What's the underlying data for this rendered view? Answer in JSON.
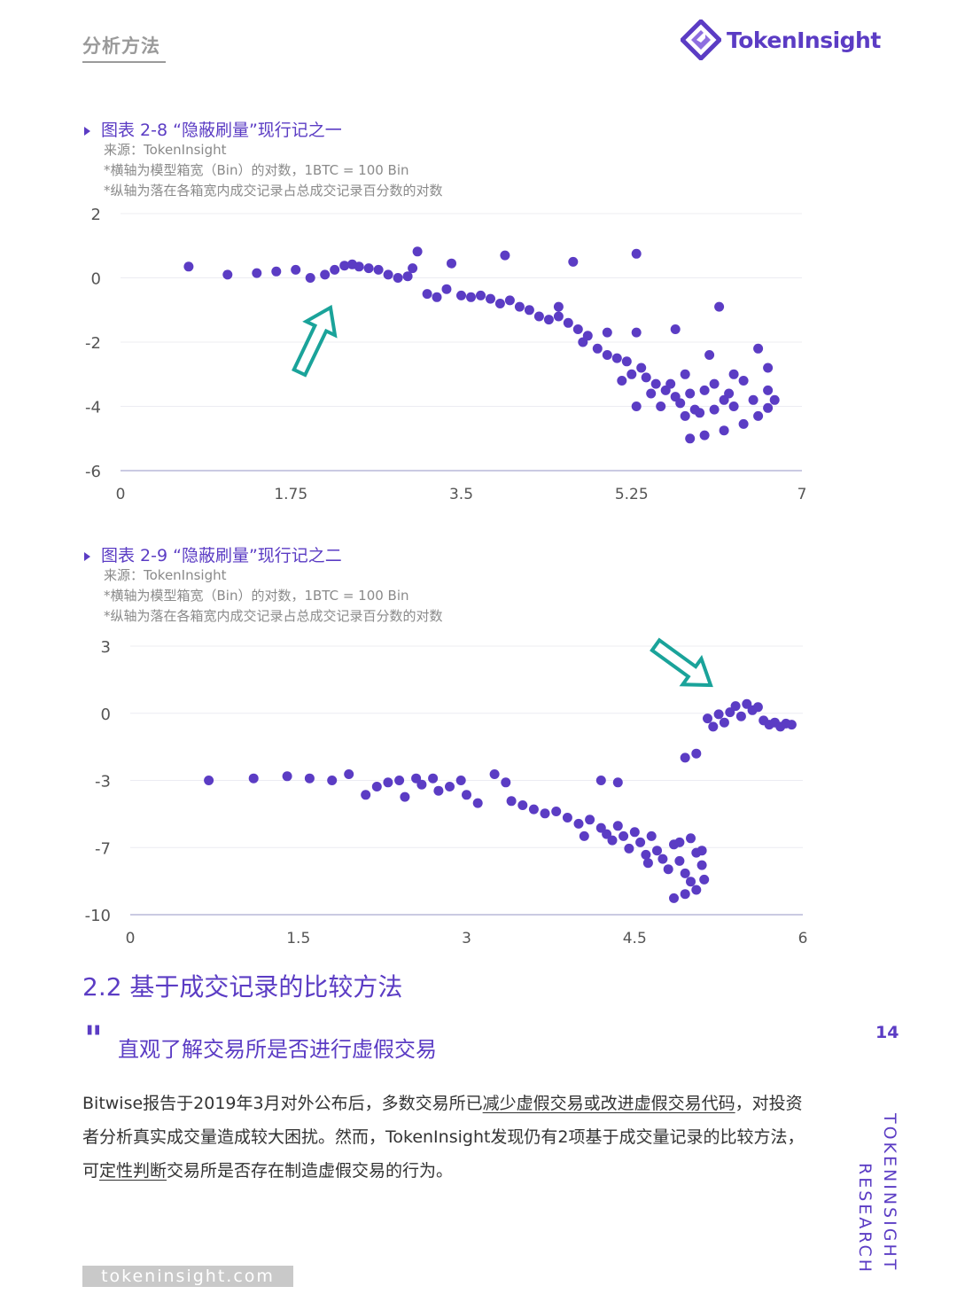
{
  "header": {
    "section_tag": "分析方法",
    "logo_text": "TokenInsight"
  },
  "figures": [
    {
      "title": "图表 2-8 “隐蔽刷量”现行记之一",
      "source": "来源：TokenInsight",
      "note_x": "*横轴为模型箱宽（Bin）的对数，1BTC = 100 Bin",
      "note_y": "*纵轴为落在各箱宽内成交记录占总成交记录百分数的对数"
    },
    {
      "title": "图表 2-9 “隐蔽刷量”现行记之二",
      "source": "来源：TokenInsight",
      "note_x": "*横轴为模型箱宽（Bin）的对数，1BTC = 100 Bin",
      "note_y": "*纵轴为落在各箱宽内成交记录占总成交记录百分数的对数"
    }
  ],
  "chart_data": [
    {
      "type": "scatter",
      "title": "图表 2-8 “隐蔽刷量”现行记之一",
      "xlim": [
        0,
        7
      ],
      "ylim": [
        -6,
        2
      ],
      "xticks": [
        "0",
        "1.75",
        "3.5",
        "5.25",
        "7"
      ],
      "yticks": [
        "2",
        "0",
        "-2",
        "-4",
        "-6"
      ],
      "grid": true,
      "point_color": "#5b3cc4",
      "annotation": "teal arrow pointing up-right toward points near x≈2.1",
      "points": [
        [
          0.7,
          0.35
        ],
        [
          1.1,
          0.1
        ],
        [
          1.4,
          0.15
        ],
        [
          1.6,
          0.2
        ],
        [
          1.8,
          0.25
        ],
        [
          1.95,
          0.0
        ],
        [
          2.1,
          0.1
        ],
        [
          2.2,
          0.25
        ],
        [
          2.3,
          0.38
        ],
        [
          2.38,
          0.42
        ],
        [
          2.45,
          0.35
        ],
        [
          2.55,
          0.3
        ],
        [
          2.65,
          0.25
        ],
        [
          2.75,
          0.1
        ],
        [
          2.85,
          0.0
        ],
        [
          2.95,
          0.05
        ],
        [
          3.0,
          0.3
        ],
        [
          3.05,
          0.82
        ],
        [
          3.15,
          -0.5
        ],
        [
          3.25,
          -0.6
        ],
        [
          3.4,
          0.45
        ],
        [
          3.35,
          -0.35
        ],
        [
          3.5,
          -0.55
        ],
        [
          3.6,
          -0.6
        ],
        [
          3.7,
          -0.55
        ],
        [
          3.8,
          -0.65
        ],
        [
          3.9,
          -0.8
        ],
        [
          4.0,
          -0.7
        ],
        [
          3.95,
          0.7
        ],
        [
          4.1,
          -0.9
        ],
        [
          4.2,
          -1.0
        ],
        [
          4.3,
          -1.2
        ],
        [
          4.4,
          -1.3
        ],
        [
          4.5,
          -0.9
        ],
        [
          4.5,
          -1.2
        ],
        [
          4.6,
          -1.4
        ],
        [
          4.7,
          -1.6
        ],
        [
          4.65,
          0.5
        ],
        [
          4.75,
          -2.0
        ],
        [
          4.8,
          -1.8
        ],
        [
          4.9,
          -2.2
        ],
        [
          5.0,
          -2.4
        ],
        [
          5.0,
          -1.7
        ],
        [
          5.1,
          -2.5
        ],
        [
          5.15,
          -3.2
        ],
        [
          5.2,
          -2.6
        ],
        [
          5.25,
          -3.0
        ],
        [
          5.3,
          0.75
        ],
        [
          5.3,
          -1.7
        ],
        [
          5.35,
          -2.8
        ],
        [
          5.4,
          -3.1
        ],
        [
          5.45,
          -3.6
        ],
        [
          5.5,
          -3.3
        ],
        [
          5.55,
          -4.0
        ],
        [
          5.6,
          -3.5
        ],
        [
          5.65,
          -3.3
        ],
        [
          5.7,
          -1.6
        ],
        [
          5.7,
          -3.7
        ],
        [
          5.75,
          -3.9
        ],
        [
          5.8,
          -3.0
        ],
        [
          5.85,
          -3.6
        ],
        [
          5.9,
          -4.1
        ],
        [
          6.0,
          -3.5
        ],
        [
          6.05,
          -2.4
        ],
        [
          6.1,
          -3.3
        ],
        [
          6.15,
          -0.9
        ],
        [
          6.2,
          -3.8
        ],
        [
          6.25,
          -3.6
        ],
        [
          6.3,
          -3.0
        ],
        [
          6.4,
          -3.2
        ],
        [
          6.55,
          -2.2
        ],
        [
          6.65,
          -2.8
        ],
        [
          5.3,
          -4.0
        ],
        [
          5.8,
          -4.3
        ],
        [
          5.95,
          -4.2
        ],
        [
          6.1,
          -4.1
        ],
        [
          6.3,
          -4.0
        ],
        [
          6.5,
          -3.8
        ],
        [
          6.65,
          -3.5
        ],
        [
          5.85,
          -5.0
        ],
        [
          6.0,
          -4.9
        ],
        [
          6.2,
          -4.75
        ],
        [
          6.4,
          -4.55
        ],
        [
          6.55,
          -4.3
        ],
        [
          6.65,
          -4.05
        ],
        [
          6.72,
          -3.8
        ]
      ]
    },
    {
      "type": "scatter",
      "title": "图表 2-9 “隐蔽刷量”现行记之二",
      "xlim": [
        0,
        6
      ],
      "ylim": [
        -10,
        3
      ],
      "xticks": [
        "0",
        "1.5",
        "3",
        "4.5",
        "6"
      ],
      "yticks": [
        "3",
        "0",
        "-3",
        "-7",
        "-10"
      ],
      "grid": true,
      "point_color": "#5b3cc4",
      "annotation": "teal arrow pointing down-right toward cluster near x≈5.2",
      "points": [
        [
          0.7,
          -3.5
        ],
        [
          1.1,
          -3.4
        ],
        [
          1.4,
          -3.3
        ],
        [
          1.6,
          -3.4
        ],
        [
          1.8,
          -3.5
        ],
        [
          1.95,
          -3.2
        ],
        [
          2.1,
          -4.2
        ],
        [
          2.2,
          -3.8
        ],
        [
          2.3,
          -3.6
        ],
        [
          2.4,
          -3.5
        ],
        [
          2.45,
          -4.3
        ],
        [
          2.55,
          -3.4
        ],
        [
          2.6,
          -3.7
        ],
        [
          2.7,
          -3.4
        ],
        [
          2.75,
          -4.0
        ],
        [
          2.85,
          -3.8
        ],
        [
          2.95,
          -3.5
        ],
        [
          3.0,
          -4.2
        ],
        [
          3.1,
          -4.6
        ],
        [
          3.25,
          -3.2
        ],
        [
          3.35,
          -3.6
        ],
        [
          3.4,
          -4.5
        ],
        [
          3.5,
          -4.7
        ],
        [
          3.6,
          -4.9
        ],
        [
          3.7,
          -5.1
        ],
        [
          3.8,
          -5.0
        ],
        [
          3.9,
          -5.3
        ],
        [
          4.0,
          -5.6
        ],
        [
          4.05,
          -6.2
        ],
        [
          4.1,
          -5.4
        ],
        [
          4.2,
          -5.8
        ],
        [
          4.25,
          -6.1
        ],
        [
          4.3,
          -6.4
        ],
        [
          4.35,
          -5.7
        ],
        [
          4.4,
          -6.2
        ],
        [
          4.45,
          -6.8
        ],
        [
          4.5,
          -6.0
        ],
        [
          4.55,
          -6.5
        ],
        [
          4.6,
          -7.1
        ],
        [
          4.62,
          -7.5
        ],
        [
          4.65,
          -6.2
        ],
        [
          4.7,
          -6.9
        ],
        [
          4.75,
          -7.3
        ],
        [
          4.8,
          -7.8
        ],
        [
          4.85,
          -6.6
        ],
        [
          4.9,
          -7.4
        ],
        [
          4.95,
          -8.0
        ],
        [
          5.0,
          -8.4
        ],
        [
          5.05,
          -7.0
        ],
        [
          5.1,
          -7.6
        ],
        [
          5.12,
          -8.3
        ],
        [
          4.85,
          -9.2
        ],
        [
          4.95,
          -9.0
        ],
        [
          5.05,
          -8.8
        ],
        [
          5.1,
          -6.9
        ],
        [
          4.9,
          -6.5
        ],
        [
          5.0,
          -6.3
        ],
        [
          4.2,
          -3.5
        ],
        [
          4.35,
          -3.6
        ],
        [
          4.95,
          -2.4
        ],
        [
          5.05,
          -2.2
        ],
        [
          5.15,
          -0.5
        ],
        [
          5.2,
          -0.9
        ],
        [
          5.25,
          -0.3
        ],
        [
          5.3,
          -0.7
        ],
        [
          5.35,
          -0.2
        ],
        [
          5.4,
          0.1
        ],
        [
          5.45,
          -0.4
        ],
        [
          5.5,
          0.2
        ],
        [
          5.55,
          -0.1
        ],
        [
          5.6,
          0.05
        ],
        [
          5.65,
          -0.6
        ],
        [
          5.7,
          -0.8
        ],
        [
          5.75,
          -0.7
        ],
        [
          5.8,
          -0.9
        ],
        [
          5.85,
          -0.75
        ],
        [
          5.9,
          -0.8
        ]
      ]
    }
  ],
  "section": {
    "heading": "2.2 基于成交记录的比较方法",
    "quote": "直观了解交易所是否进行虚假交易",
    "page_number": "14",
    "para_part1": "Bitwise报告于2019年3月对外公布后，多数交易所已",
    "para_link1": "减少虚假交易或改进虚假交易代码",
    "para_part2": "，对投资者分析真实成交量造成较大困扰。然而，TokenInsight发现仍有2项基于成交量记录的比较方法，可",
    "para_link2": "定性判断",
    "para_part3": "交易所是否存在制造虚假交易的行为。",
    "side_line1": "TOKENINSIGHT",
    "side_line2": "RESEARCH"
  },
  "footer": {
    "url": "tokeninsight.com"
  }
}
